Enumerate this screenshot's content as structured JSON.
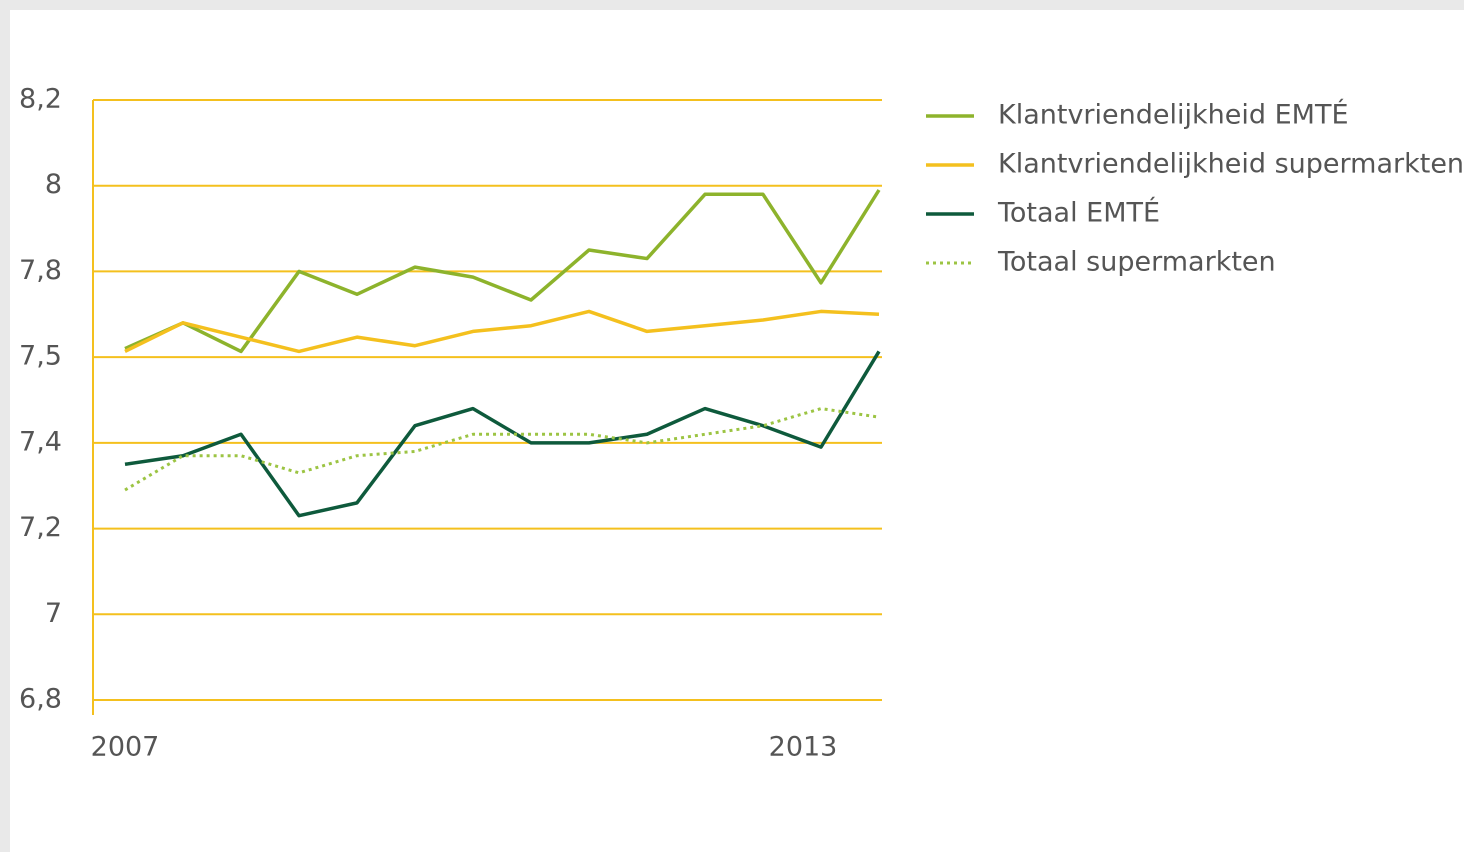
{
  "chart_data": {
    "type": "line",
    "categories": [
      "2007",
      null,
      null,
      null,
      null,
      null,
      null,
      null,
      null,
      null,
      null,
      null,
      "2013",
      null
    ],
    "ylim": [
      6.8,
      8.2
    ],
    "yticks": [
      {
        "value": 6.8,
        "label": "6,8"
      },
      7,
      {
        "value": 7.2,
        "label": "7,2"
      },
      {
        "value": 7.4,
        "label": "7,4"
      },
      {
        "value": 7.5,
        "label": "7,5"
      },
      {
        "value": 7.8,
        "label": "7,8"
      },
      8,
      {
        "value": 8.2,
        "label": "8,2"
      }
    ],
    "grid": true,
    "grid_color": "#f4c01e",
    "legend": "right",
    "series": [
      {
        "name": "Klantvriendelijkheid EMTÉ",
        "color": "#8db32c",
        "values": [
          7.53,
          7.62,
          7.52,
          7.8,
          7.72,
          7.81,
          7.78,
          7.7,
          7.85,
          7.83,
          7.98,
          7.98,
          7.76,
          7.99
        ]
      },
      {
        "name": "Klantvriendelijkheid supermarkten",
        "color": "#f4c01e",
        "values": [
          7.52,
          7.62,
          7.57,
          7.52,
          7.57,
          7.54,
          7.59,
          7.61,
          7.66,
          7.59,
          7.61,
          7.63,
          7.66,
          7.65
        ]
      },
      {
        "name": "Totaal EMTÉ",
        "color": "#0e5a3c",
        "values": [
          7.35,
          7.37,
          7.41,
          7.23,
          7.26,
          7.42,
          7.44,
          7.4,
          7.4,
          7.41,
          7.44,
          7.42,
          7.39,
          7.52
        ]
      },
      {
        "name": "Totaal supermarkten",
        "color": "#9cc443",
        "style": "dotted",
        "values": [
          7.29,
          7.37,
          7.37,
          7.33,
          7.37,
          7.38,
          7.41,
          7.41,
          7.41,
          7.4,
          7.41,
          7.42,
          7.44,
          7.43
        ]
      }
    ]
  }
}
